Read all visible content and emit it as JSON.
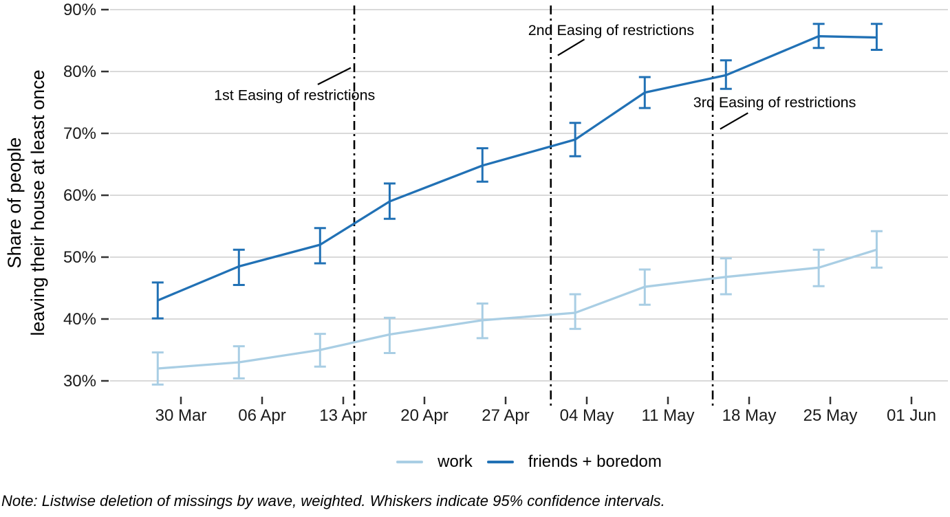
{
  "figure": {
    "note": "Note: Listwise deletion of missings by wave, weighted. Whiskers indicate 95% confidence intervals."
  },
  "chart_data": {
    "type": "line",
    "title": "",
    "xlabel": "",
    "ylabel_lines": [
      "Share of people",
      "leaving their house at least once"
    ],
    "ylim": [
      30,
      90
    ],
    "grid": "horizontal",
    "legend_position": "bottom",
    "style": {
      "grid_color": "#d9d9d9",
      "tick_color": "#333333",
      "text_color": "#1a1a1a",
      "annotation_color": "#000000",
      "event_line_color": "#000000"
    },
    "y_ticks": [
      {
        "value": 30,
        "label": "30%"
      },
      {
        "value": 40,
        "label": "40%"
      },
      {
        "value": 50,
        "label": "50%"
      },
      {
        "value": 60,
        "label": "60%"
      },
      {
        "value": 70,
        "label": "70%"
      },
      {
        "value": 80,
        "label": "80%"
      },
      {
        "value": 90,
        "label": "90%"
      }
    ],
    "x_ticks": [
      {
        "day": 0,
        "label": "30 Mar"
      },
      {
        "day": 7,
        "label": "06 Apr"
      },
      {
        "day": 14,
        "label": "13 Apr"
      },
      {
        "day": 21,
        "label": "20 Apr"
      },
      {
        "day": 28,
        "label": "27 Apr"
      },
      {
        "day": 35,
        "label": "04 May"
      },
      {
        "day": 42,
        "label": "11 May"
      },
      {
        "day": 49,
        "label": "18 May"
      },
      {
        "day": 56,
        "label": "25 May"
      },
      {
        "day": 63,
        "label": "01 Jun"
      }
    ],
    "series": [
      {
        "name": "work",
        "color": "#a9cee4",
        "points": [
          {
            "date": "28 Mar",
            "day": -2,
            "value": 32.0,
            "lo": 29.4,
            "hi": 34.6
          },
          {
            "date": "04 Apr",
            "day": 5,
            "value": 33.0,
            "lo": 30.4,
            "hi": 35.6
          },
          {
            "date": "11 Apr",
            "day": 12,
            "value": 35.0,
            "lo": 32.3,
            "hi": 37.6
          },
          {
            "date": "17 Apr",
            "day": 18,
            "value": 37.5,
            "lo": 34.5,
            "hi": 40.2
          },
          {
            "date": "25 Apr",
            "day": 26,
            "value": 39.8,
            "lo": 36.9,
            "hi": 42.5
          },
          {
            "date": "03 May",
            "day": 34,
            "value": 41.0,
            "lo": 38.4,
            "hi": 44.0
          },
          {
            "date": "09 May",
            "day": 40,
            "value": 45.2,
            "lo": 42.3,
            "hi": 48.0
          },
          {
            "date": "16 May",
            "day": 47,
            "value": 46.8,
            "lo": 44.0,
            "hi": 49.8
          },
          {
            "date": "24 May",
            "day": 55,
            "value": 48.3,
            "lo": 45.3,
            "hi": 51.2
          },
          {
            "date": "29 May",
            "day": 60,
            "value": 51.2,
            "lo": 48.3,
            "hi": 54.2
          }
        ]
      },
      {
        "name": "friends + boredom",
        "color": "#2171b5",
        "points": [
          {
            "date": "28 Mar",
            "day": -2,
            "value": 43.0,
            "lo": 40.1,
            "hi": 45.9
          },
          {
            "date": "04 Apr",
            "day": 5,
            "value": 48.5,
            "lo": 45.5,
            "hi": 51.2
          },
          {
            "date": "11 Apr",
            "day": 12,
            "value": 52.0,
            "lo": 49.0,
            "hi": 54.7
          },
          {
            "date": "17 Apr",
            "day": 18,
            "value": 59.0,
            "lo": 56.2,
            "hi": 61.9
          },
          {
            "date": "25 Apr",
            "day": 26,
            "value": 64.8,
            "lo": 62.2,
            "hi": 67.6
          },
          {
            "date": "03 May",
            "day": 34,
            "value": 69.0,
            "lo": 66.3,
            "hi": 71.7
          },
          {
            "date": "09 May",
            "day": 40,
            "value": 76.6,
            "lo": 74.1,
            "hi": 79.1
          },
          {
            "date": "16 May",
            "day": 47,
            "value": 79.4,
            "lo": 77.2,
            "hi": 81.8
          },
          {
            "date": "24 May",
            "day": 55,
            "value": 85.7,
            "lo": 83.8,
            "hi": 87.7
          },
          {
            "date": "29 May",
            "day": 60,
            "value": 85.5,
            "lo": 83.5,
            "hi": 87.7
          }
        ]
      }
    ],
    "events": [
      {
        "label": "1st Easing of restrictions",
        "day": 14.95,
        "text_day": 9.8,
        "text_value": 76.3,
        "pointer": [
          [
            11.8,
            77.9
          ],
          [
            14.65,
            80.6
          ]
        ]
      },
      {
        "label": "2nd Easing of restrictions",
        "day": 31.9,
        "text_day": 37.1,
        "text_value": 86.8,
        "pointer": [
          [
            32.5,
            82.6
          ],
          [
            34.8,
            85.2
          ]
        ]
      },
      {
        "label": "3rd Easing of restrictions",
        "day": 45.86,
        "text_day": 51.2,
        "text_value": 75.1,
        "pointer": [
          [
            46.5,
            70.7
          ],
          [
            48.9,
            73.3
          ]
        ]
      }
    ],
    "legend": [
      {
        "label": "work",
        "color": "#a9cee4"
      },
      {
        "label": "friends + boredom",
        "color": "#2171b5"
      }
    ]
  }
}
